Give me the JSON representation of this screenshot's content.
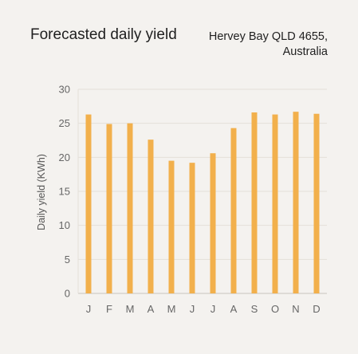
{
  "header": {
    "title": "Forecasted daily yield",
    "location_line1": "Hervey Bay QLD 4655,",
    "location_line2": "Australia"
  },
  "colors": {
    "background": "#f4f2ef",
    "bar": "#f2b04c",
    "grid": "#e4e0da",
    "axis": "#c9c4bd",
    "tick_text": "#666666"
  },
  "chart_data": {
    "type": "bar",
    "ylabel": "Daily yield (KWh)",
    "xlabel": "",
    "ylim": [
      0,
      30
    ],
    "yticks": [
      0,
      5,
      10,
      15,
      20,
      25,
      30
    ],
    "grid": true,
    "categories": [
      "J",
      "F",
      "M",
      "A",
      "M",
      "J",
      "J",
      "A",
      "S",
      "O",
      "N",
      "D"
    ],
    "values": [
      26.3,
      24.9,
      25.0,
      22.6,
      19.5,
      19.2,
      20.6,
      24.3,
      26.6,
      26.3,
      26.7,
      26.4
    ]
  }
}
